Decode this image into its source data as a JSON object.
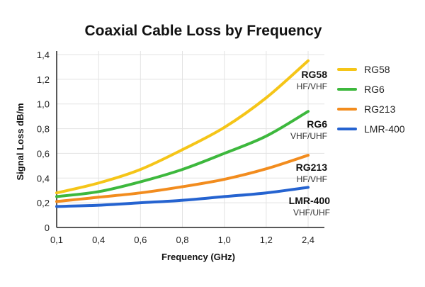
{
  "chart_data": {
    "type": "line",
    "title": "Coaxial Cable Loss by Frequency",
    "xlabel": "Frequency (GHz)",
    "ylabel": "Signal Loss dB/m",
    "categories": [
      "0,1",
      "0,4",
      "0,6",
      "0,8",
      "1,0",
      "1,2",
      "2,4"
    ],
    "ylim": [
      0,
      1.4
    ],
    "yticks": [
      "0",
      "0,2",
      "0,4",
      "0,6",
      "0,8",
      "1,0",
      "1,2",
      "1,4"
    ],
    "grid": true,
    "legend_position": "right",
    "series": [
      {
        "name": "RG58",
        "color": "#F5C518",
        "values": [
          0.28,
          0.36,
          0.47,
          0.63,
          0.81,
          1.05,
          1.35
        ],
        "label": "RG58",
        "sublabel": "HF/VHF"
      },
      {
        "name": "RG6",
        "color": "#3DB83D",
        "values": [
          0.25,
          0.29,
          0.37,
          0.47,
          0.6,
          0.74,
          0.94
        ],
        "label": "RG6",
        "sublabel": "VHF/UHF"
      },
      {
        "name": "RG213",
        "color": "#F28C1E",
        "values": [
          0.21,
          0.245,
          0.28,
          0.33,
          0.39,
          0.475,
          0.585
        ],
        "label": "RG213",
        "sublabel": "HF/VHF"
      },
      {
        "name": "LMR-400",
        "color": "#2563D0",
        "values": [
          0.17,
          0.18,
          0.2,
          0.22,
          0.25,
          0.28,
          0.325
        ],
        "label": "LMR-400",
        "sublabel": "VHF/UHF"
      }
    ]
  }
}
